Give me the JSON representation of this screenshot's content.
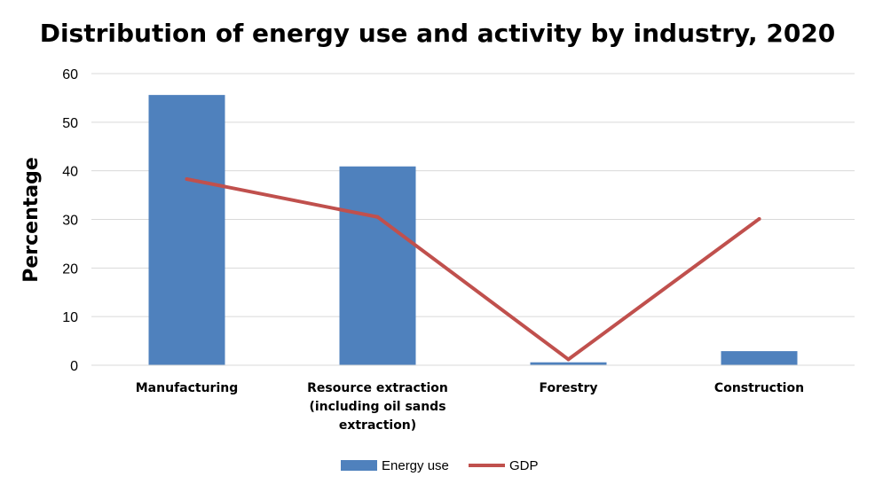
{
  "chart_data": {
    "type": "bar",
    "title": "Distribution of energy use and activity by industry, 2020",
    "xlabel": "",
    "ylabel": "Percentage",
    "ylim": [
      0,
      60
    ],
    "yticks": [
      "0",
      "10",
      "20",
      "30",
      "40",
      "50",
      "60"
    ],
    "categories": [
      [
        "Manufacturing"
      ],
      [
        "Resource extraction",
        "(including oil sands",
        "extraction)"
      ],
      [
        "Forestry"
      ],
      [
        "Construction"
      ]
    ],
    "series": [
      {
        "name": "Energy use",
        "kind": "bar",
        "color": "#4F81BD",
        "values": [
          55.6,
          40.9,
          0.6,
          2.9
        ]
      },
      {
        "name": "GDP",
        "kind": "line",
        "color": "#C0504D",
        "values": [
          38.3,
          30.5,
          1.2,
          30.1
        ]
      }
    ],
    "grid": true,
    "legend": "bottom"
  }
}
